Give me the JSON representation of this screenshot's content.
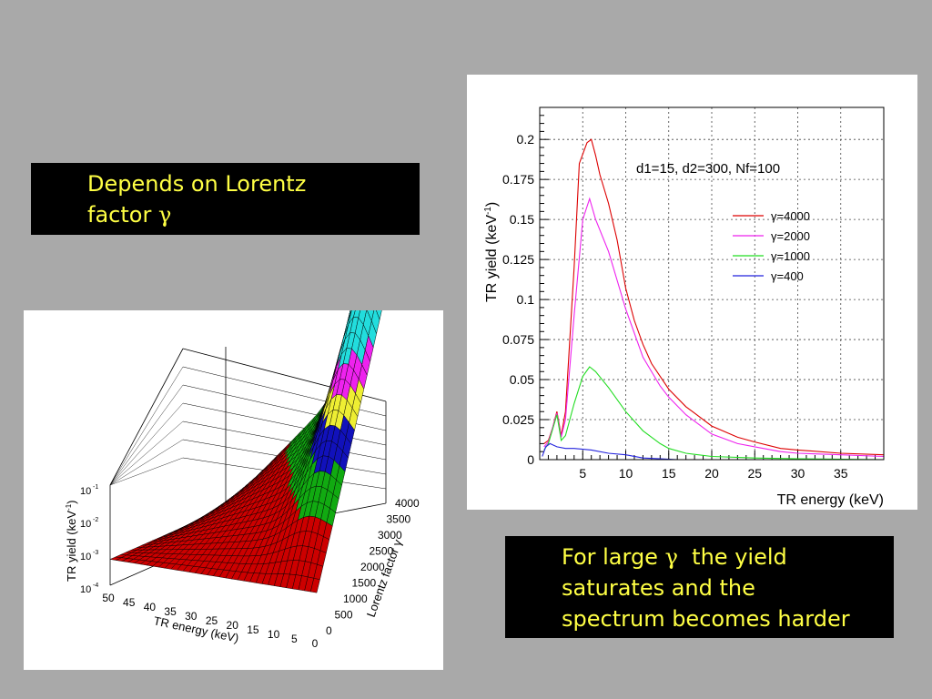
{
  "callouts": {
    "top": {
      "line1": "Depends on Lorentz",
      "line2_text": "factor ",
      "line2_symbol": "γ"
    },
    "bottom": {
      "line1_pre": "For large ",
      "line1_symbol": "γ",
      "line1_post": "  the yield",
      "line2": "saturates and the",
      "line3": "spectrum becomes harder"
    }
  },
  "colors": {
    "background": "#a9a9a9",
    "callout_bg": "#000000",
    "callout_text": "#ffff44"
  },
  "chart_data": [
    {
      "type": "line",
      "annotation": "d1=15, d2=300, Nf=100",
      "xlabel": "TR energy (keV)",
      "ylabel": "TR yield (keV",
      "ylabel_sup": "-1",
      "ylabel_close": ")",
      "xlim": [
        0,
        40
      ],
      "ylim": [
        0,
        0.22
      ],
      "x_ticks": [
        5,
        10,
        15,
        20,
        25,
        30,
        35
      ],
      "y_ticks": [
        0,
        0.025,
        0.05,
        0.075,
        0.1,
        0.125,
        0.15,
        0.175,
        0.2
      ],
      "y_tick_labels": [
        "0",
        "0.025",
        "0.05",
        "0.075",
        "0.1",
        "0.125",
        "0.15",
        "0.175",
        "0.2"
      ],
      "grid": true,
      "legend_position": "right",
      "series": [
        {
          "name": "γ=4000",
          "color": "#dd0000",
          "points": [
            [
              0.5,
              0.01
            ],
            [
              1,
              0.012
            ],
            [
              1.5,
              0.02
            ],
            [
              2,
              0.03
            ],
            [
              2.5,
              0.015
            ],
            [
              3,
              0.03
            ],
            [
              4,
              0.12
            ],
            [
              4.6,
              0.185
            ],
            [
              5.5,
              0.198
            ],
            [
              6,
              0.2
            ],
            [
              6.5,
              0.19
            ],
            [
              7,
              0.178
            ],
            [
              8,
              0.16
            ],
            [
              9,
              0.137
            ],
            [
              10,
              0.107
            ],
            [
              11,
              0.087
            ],
            [
              12,
              0.072
            ],
            [
              13,
              0.06
            ],
            [
              15,
              0.044
            ],
            [
              17,
              0.033
            ],
            [
              20,
              0.021
            ],
            [
              23,
              0.014
            ],
            [
              25,
              0.011
            ],
            [
              28,
              0.007
            ],
            [
              30,
              0.006
            ],
            [
              35,
              0.004
            ],
            [
              40,
              0.003
            ]
          ]
        },
        {
          "name": "γ=2000",
          "color": "#ee22ee",
          "points": [
            [
              0.5,
              0.008
            ],
            [
              1,
              0.011
            ],
            [
              1.5,
              0.02
            ],
            [
              2,
              0.029
            ],
            [
              2.5,
              0.014
            ],
            [
              3,
              0.025
            ],
            [
              4,
              0.09
            ],
            [
              5,
              0.15
            ],
            [
              5.8,
              0.163
            ],
            [
              6.5,
              0.15
            ],
            [
              8,
              0.13
            ],
            [
              10,
              0.094
            ],
            [
              12,
              0.064
            ],
            [
              14,
              0.046
            ],
            [
              15,
              0.039
            ],
            [
              17,
              0.028
            ],
            [
              20,
              0.016
            ],
            [
              23,
              0.01
            ],
            [
              25,
              0.008
            ],
            [
              28,
              0.005
            ],
            [
              30,
              0.004
            ],
            [
              35,
              0.003
            ],
            [
              40,
              0.002
            ]
          ]
        },
        {
          "name": "γ=1000",
          "color": "#22dd22",
          "points": [
            [
              0.5,
              0.006
            ],
            [
              1,
              0.01
            ],
            [
              1.5,
              0.019
            ],
            [
              2,
              0.028
            ],
            [
              2.5,
              0.012
            ],
            [
              3,
              0.015
            ],
            [
              4,
              0.035
            ],
            [
              5,
              0.052
            ],
            [
              5.8,
              0.058
            ],
            [
              6.5,
              0.055
            ],
            [
              8,
              0.045
            ],
            [
              10,
              0.03
            ],
            [
              12,
              0.018
            ],
            [
              14,
              0.01
            ],
            [
              15,
              0.007
            ],
            [
              17,
              0.004
            ],
            [
              20,
              0.002
            ],
            [
              25,
              0.001
            ],
            [
              30,
              0.0005
            ],
            [
              40,
              0.0
            ]
          ]
        },
        {
          "name": "γ=400",
          "color": "#2222dd",
          "points": [
            [
              0.3,
              0.002
            ],
            [
              0.7,
              0.008
            ],
            [
              1.2,
              0.01
            ],
            [
              2,
              0.008
            ],
            [
              3,
              0.007
            ],
            [
              4,
              0.007
            ],
            [
              6,
              0.006
            ],
            [
              8,
              0.004
            ],
            [
              10,
              0.003
            ],
            [
              12,
              0.001
            ],
            [
              14,
              0.0005
            ],
            [
              16,
              0.0
            ],
            [
              40,
              0.0
            ]
          ]
        }
      ]
    },
    {
      "type": "surface",
      "xlabel": "TR energy (keV)",
      "ylabel": "Lorentz factor γ",
      "zlabel": "TR yield (keV",
      "zlabel_sup": "-1",
      "zlabel_close": ")",
      "x_tick_labels": [
        "50",
        "45",
        "40",
        "35",
        "30",
        "25",
        "20",
        "15",
        "10",
        "5",
        "0"
      ],
      "y_tick_labels": [
        "0",
        "500",
        "1000",
        "1500",
        "2000",
        "2500",
        "3000",
        "3500",
        "4000"
      ],
      "z_tick_labels": [
        "10",
        "10",
        "10",
        "10"
      ],
      "z_tick_exponents": [
        "-1",
        "-2",
        "-3",
        "-4"
      ],
      "z_scale": "log",
      "band_colors": [
        "#cc0000",
        "#11aa11",
        "#1111bb",
        "#eeee33",
        "#ee22ee",
        "#22dddd"
      ]
    }
  ]
}
